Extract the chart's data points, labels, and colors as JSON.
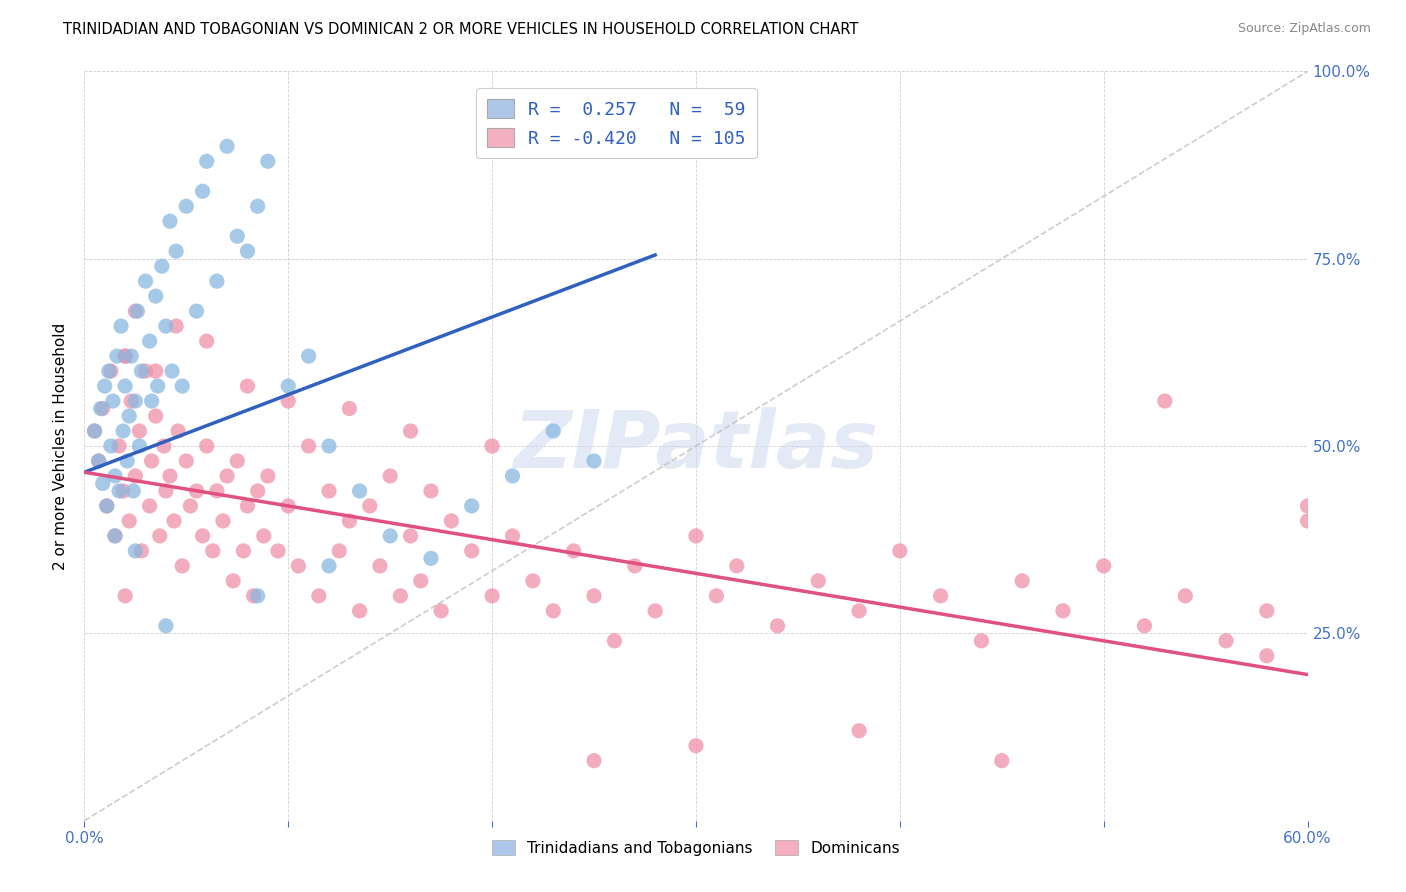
{
  "title": "TRINIDADIAN AND TOBAGONIAN VS DOMINICAN 2 OR MORE VEHICLES IN HOUSEHOLD CORRELATION CHART",
  "source": "Source: ZipAtlas.com",
  "ylabel": "2 or more Vehicles in Household",
  "xmin": 0.0,
  "xmax": 0.6,
  "ymin": 0.0,
  "ymax": 1.0,
  "legend1_label": "R =  0.257   N =  59",
  "legend2_label": "R = -0.420   N = 105",
  "legend1_color": "#aec6e8",
  "legend2_color": "#f4b0c0",
  "blue_line_color": "#3060c0",
  "pink_line_color": "#e05080",
  "diag_line_color": "#c0c0c0",
  "watermark_text": "ZIPatlas",
  "scatter_blue_color": "#88b8e0",
  "scatter_pink_color": "#f090a8",
  "blue_line_x0": 0.0,
  "blue_line_y0": 0.465,
  "blue_line_x1": 0.28,
  "blue_line_y1": 0.755,
  "pink_line_x0": 0.0,
  "pink_line_y0": 0.465,
  "pink_line_x1": 0.6,
  "pink_line_y1": 0.195,
  "blue_points_x": [
    0.005,
    0.007,
    0.008,
    0.009,
    0.01,
    0.011,
    0.012,
    0.013,
    0.014,
    0.015,
    0.016,
    0.017,
    0.018,
    0.019,
    0.02,
    0.021,
    0.022,
    0.023,
    0.024,
    0.025,
    0.026,
    0.027,
    0.028,
    0.03,
    0.032,
    0.033,
    0.035,
    0.036,
    0.038,
    0.04,
    0.042,
    0.043,
    0.045,
    0.048,
    0.05,
    0.055,
    0.058,
    0.06,
    0.065,
    0.07,
    0.075,
    0.08,
    0.085,
    0.09,
    0.1,
    0.11,
    0.12,
    0.135,
    0.15,
    0.17,
    0.19,
    0.21,
    0.23,
    0.25,
    0.12,
    0.085,
    0.04,
    0.025,
    0.015
  ],
  "blue_points_y": [
    0.52,
    0.48,
    0.55,
    0.45,
    0.58,
    0.42,
    0.6,
    0.5,
    0.56,
    0.46,
    0.62,
    0.44,
    0.66,
    0.52,
    0.58,
    0.48,
    0.54,
    0.62,
    0.44,
    0.56,
    0.68,
    0.5,
    0.6,
    0.72,
    0.64,
    0.56,
    0.7,
    0.58,
    0.74,
    0.66,
    0.8,
    0.6,
    0.76,
    0.58,
    0.82,
    0.68,
    0.84,
    0.88,
    0.72,
    0.9,
    0.78,
    0.76,
    0.82,
    0.88,
    0.58,
    0.62,
    0.5,
    0.44,
    0.38,
    0.35,
    0.42,
    0.46,
    0.52,
    0.48,
    0.34,
    0.3,
    0.26,
    0.36,
    0.38
  ],
  "pink_points_x": [
    0.005,
    0.007,
    0.009,
    0.011,
    0.013,
    0.015,
    0.017,
    0.019,
    0.02,
    0.022,
    0.023,
    0.025,
    0.027,
    0.028,
    0.03,
    0.032,
    0.033,
    0.035,
    0.037,
    0.039,
    0.04,
    0.042,
    0.044,
    0.046,
    0.048,
    0.05,
    0.052,
    0.055,
    0.058,
    0.06,
    0.063,
    0.065,
    0.068,
    0.07,
    0.073,
    0.075,
    0.078,
    0.08,
    0.083,
    0.085,
    0.088,
    0.09,
    0.095,
    0.1,
    0.105,
    0.11,
    0.115,
    0.12,
    0.125,
    0.13,
    0.135,
    0.14,
    0.145,
    0.15,
    0.155,
    0.16,
    0.165,
    0.17,
    0.175,
    0.18,
    0.19,
    0.2,
    0.21,
    0.22,
    0.23,
    0.24,
    0.25,
    0.26,
    0.27,
    0.28,
    0.3,
    0.31,
    0.32,
    0.34,
    0.36,
    0.38,
    0.4,
    0.42,
    0.44,
    0.46,
    0.48,
    0.5,
    0.52,
    0.54,
    0.56,
    0.58,
    0.6,
    0.02,
    0.025,
    0.035,
    0.045,
    0.06,
    0.08,
    0.1,
    0.13,
    0.16,
    0.2,
    0.25,
    0.3,
    0.38,
    0.45,
    0.53,
    0.58,
    0.6,
    0.02
  ],
  "pink_points_y": [
    0.52,
    0.48,
    0.55,
    0.42,
    0.6,
    0.38,
    0.5,
    0.44,
    0.62,
    0.4,
    0.56,
    0.46,
    0.52,
    0.36,
    0.6,
    0.42,
    0.48,
    0.54,
    0.38,
    0.5,
    0.44,
    0.46,
    0.4,
    0.52,
    0.34,
    0.48,
    0.42,
    0.44,
    0.38,
    0.5,
    0.36,
    0.44,
    0.4,
    0.46,
    0.32,
    0.48,
    0.36,
    0.42,
    0.3,
    0.44,
    0.38,
    0.46,
    0.36,
    0.42,
    0.34,
    0.5,
    0.3,
    0.44,
    0.36,
    0.4,
    0.28,
    0.42,
    0.34,
    0.46,
    0.3,
    0.38,
    0.32,
    0.44,
    0.28,
    0.4,
    0.36,
    0.3,
    0.38,
    0.32,
    0.28,
    0.36,
    0.3,
    0.24,
    0.34,
    0.28,
    0.38,
    0.3,
    0.34,
    0.26,
    0.32,
    0.28,
    0.36,
    0.3,
    0.24,
    0.32,
    0.28,
    0.34,
    0.26,
    0.3,
    0.24,
    0.28,
    0.4,
    0.62,
    0.68,
    0.6,
    0.66,
    0.64,
    0.58,
    0.56,
    0.55,
    0.52,
    0.5,
    0.08,
    0.1,
    0.12,
    0.08,
    0.56,
    0.22,
    0.42,
    0.3
  ]
}
